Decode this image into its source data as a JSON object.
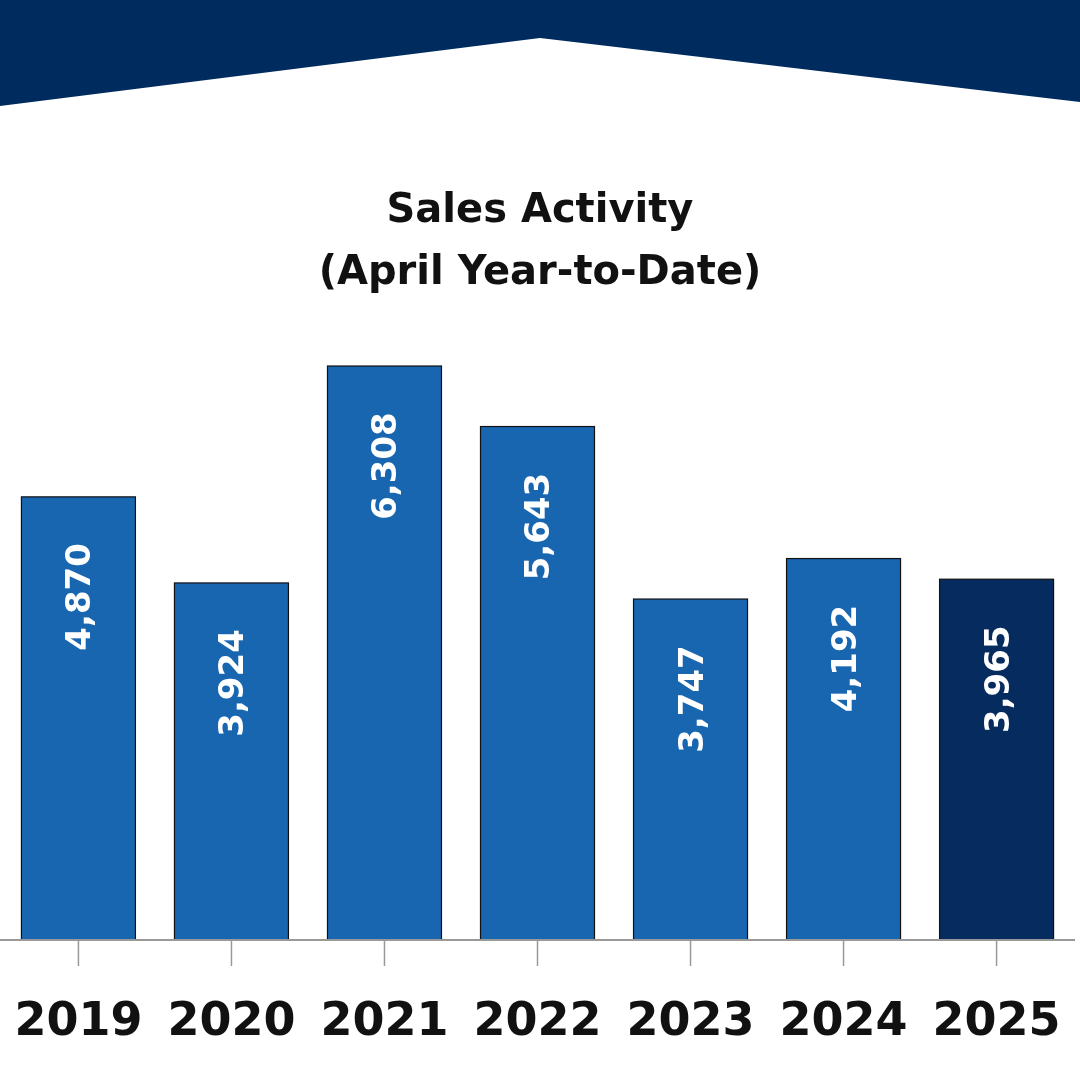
{
  "chart_data": {
    "type": "bar",
    "title": "Sales Activity",
    "subtitle": "(April Year-to-Date)",
    "categories": [
      "2019",
      "2020",
      "2021",
      "2022",
      "2023",
      "2024",
      "2025"
    ],
    "values": [
      4870,
      3924,
      6308,
      5643,
      3747,
      4192,
      3965
    ],
    "colors": [
      "#1866b0",
      "#1866b0",
      "#1866b0",
      "#1866b0",
      "#1866b0",
      "#1866b0",
      "#062c5f"
    ],
    "data_labels": true,
    "value_labels": [
      "4,870",
      "3,924",
      "6,308",
      "5,643",
      "3,747",
      "4,192",
      "3,965"
    ]
  }
}
